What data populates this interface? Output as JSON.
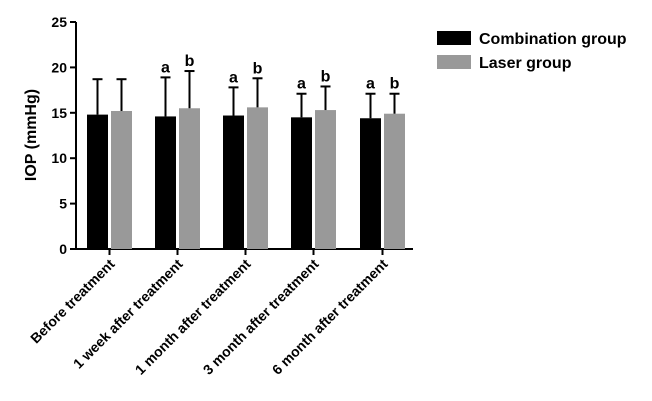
{
  "chart_data": {
    "type": "bar",
    "title": "",
    "xlabel": "",
    "ylabel": "IOP (mmHg)",
    "ylim": [
      0,
      25
    ],
    "yticks": [
      0,
      5,
      10,
      15,
      20,
      25
    ],
    "grid": false,
    "legend_position": "top-right",
    "categories": [
      "Before treatment",
      "1 week after treatment",
      "1 month after treatment",
      "3 month after treatment",
      "6 month after treatment"
    ],
    "series": [
      {
        "name": "Combination group",
        "color": "#000000",
        "values": [
          14.8,
          14.6,
          14.7,
          14.5,
          14.4
        ],
        "error": [
          3.9,
          4.3,
          3.1,
          2.6,
          2.7
        ],
        "significance": [
          "",
          "a",
          "a",
          "a",
          "a"
        ]
      },
      {
        "name": "Laser group",
        "color": "#999999",
        "values": [
          15.2,
          15.5,
          15.6,
          15.3,
          14.9
        ],
        "error": [
          3.5,
          4.1,
          3.2,
          2.6,
          2.2
        ],
        "significance": [
          "",
          "b",
          "b",
          "b",
          "b"
        ]
      }
    ]
  }
}
